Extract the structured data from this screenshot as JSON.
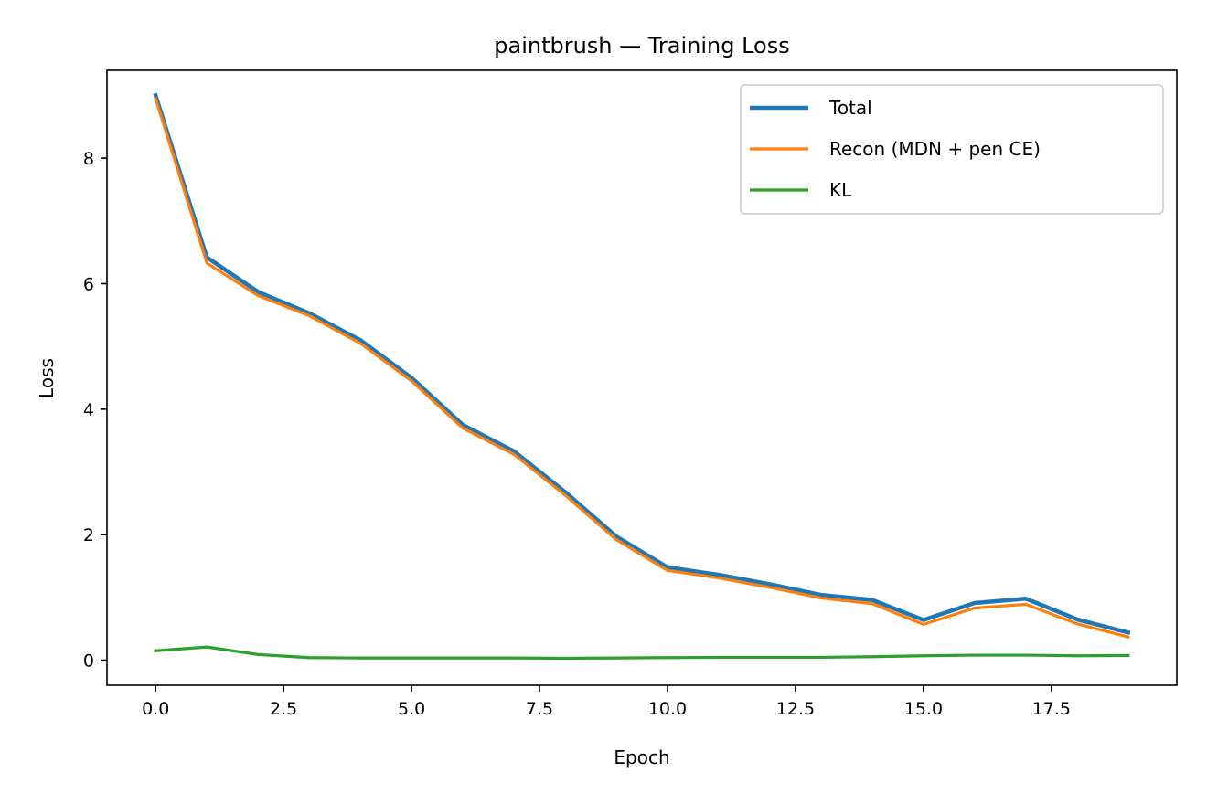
{
  "chart_data": {
    "type": "line",
    "title": "paintbrush — Training Loss",
    "xlabel": "Epoch",
    "ylabel": "Loss",
    "xlim": [
      -0.95,
      19.95
    ],
    "ylim": [
      -0.4,
      9.4
    ],
    "xticks": [
      0.0,
      2.5,
      5.0,
      7.5,
      10.0,
      12.5,
      15.0,
      17.5
    ],
    "xtick_labels": [
      "0.0",
      "2.5",
      "5.0",
      "7.5",
      "10.0",
      "12.5",
      "15.0",
      "17.5"
    ],
    "yticks": [
      0,
      2,
      4,
      6,
      8
    ],
    "ytick_labels": [
      "0",
      "2",
      "4",
      "6",
      "8"
    ],
    "grid": false,
    "legend_position": "top-right",
    "x": [
      0,
      1,
      2,
      3,
      4,
      5,
      6,
      7,
      8,
      9,
      10,
      11,
      12,
      13,
      14,
      15,
      16,
      17,
      18,
      19
    ],
    "series": [
      {
        "name": "Total",
        "color": "#1f77b4",
        "values": [
          9.0,
          6.42,
          5.87,
          5.53,
          5.1,
          4.5,
          3.75,
          3.33,
          2.68,
          1.97,
          1.48,
          1.36,
          1.21,
          1.04,
          0.96,
          0.64,
          0.91,
          0.98,
          0.65,
          0.44
        ]
      },
      {
        "name": "Recon (MDN + pen CE)",
        "color": "#ff7f0e",
        "values": [
          8.95,
          6.33,
          5.81,
          5.49,
          5.05,
          4.45,
          3.7,
          3.28,
          2.63,
          1.92,
          1.43,
          1.31,
          1.16,
          0.99,
          0.9,
          0.57,
          0.83,
          0.89,
          0.58,
          0.37
        ]
      },
      {
        "name": "KL",
        "color": "#2ca02c",
        "values": [
          0.15,
          0.21,
          0.09,
          0.04,
          0.035,
          0.035,
          0.035,
          0.035,
          0.03,
          0.035,
          0.04,
          0.045,
          0.045,
          0.045,
          0.055,
          0.07,
          0.08,
          0.08,
          0.07,
          0.075
        ]
      }
    ]
  }
}
